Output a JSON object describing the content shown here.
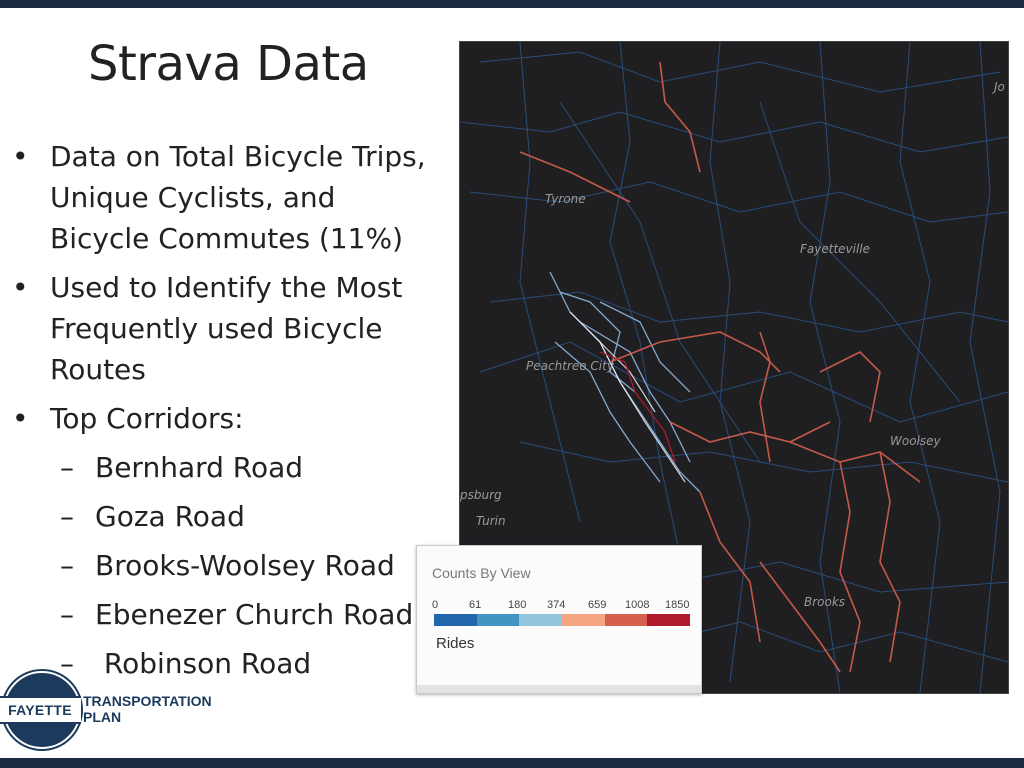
{
  "slide": {
    "title": "Strava Data"
  },
  "bullets": [
    {
      "text": "Data on Total Bicycle Trips, Unique Cyclists, and Bicycle Commutes (11%)"
    },
    {
      "text": "Used to Identify the Most Frequently used Bicycle Routes"
    },
    {
      "text": "Top Corridors:"
    }
  ],
  "corridors": [
    "Bernhard Road",
    "Goza Road",
    "Brooks-Woolsey Road",
    "Ebenezer Church Road",
    " Robinson Road"
  ],
  "map": {
    "labels": {
      "top_right": "Jo",
      "tyrone": "Tyrone",
      "fayetteville": "Fayetteville",
      "peachtree_city": "Peachtree City",
      "woolsey": "Woolsey",
      "sburg": "psburg",
      "turin": "Turin",
      "brooks": "Brooks"
    }
  },
  "legend": {
    "title": "Counts By View",
    "ticks": [
      "0",
      "61",
      "180",
      "374",
      "659",
      "1008",
      "1850"
    ],
    "colors": [
      "#2166ac",
      "#4393c3",
      "#92c5de",
      "#f4a582",
      "#d6604d",
      "#b2182b"
    ],
    "unit": "Rides"
  },
  "logo": {
    "badge": "FAYETTE",
    "line1": "TRANSPORTATION",
    "line2": "PLAN"
  }
}
